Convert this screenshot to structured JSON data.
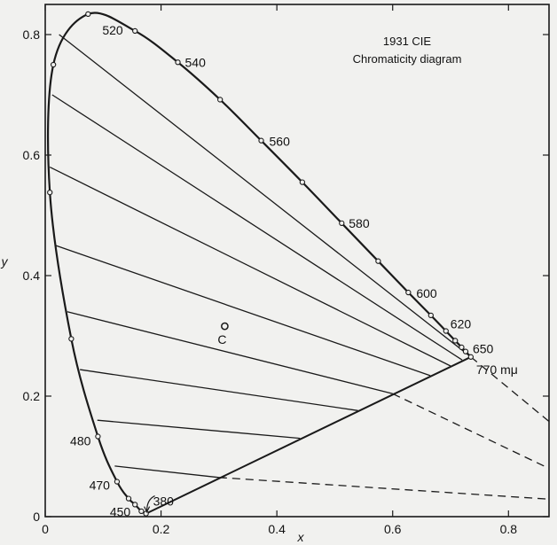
{
  "chart_data": {
    "type": "line",
    "title": "1931 CIE",
    "subtitle": "Chromaticity diagram",
    "xlabel": "x",
    "ylabel": "y",
    "xlim": [
      0,
      0.87
    ],
    "ylim": [
      0,
      0.85
    ],
    "x_ticks": [
      "0",
      "0.2",
      "0.4",
      "0.6",
      "0.8"
    ],
    "y_ticks": [
      "0",
      "0.2",
      "0.4",
      "0.6",
      "0.8"
    ],
    "spectrum_locus": [
      {
        "x": 0.174,
        "y": 0.005
      },
      {
        "x": 0.166,
        "y": 0.009
      },
      {
        "x": 0.155,
        "y": 0.02
      },
      {
        "x": 0.144,
        "y": 0.03
      },
      {
        "x": 0.124,
        "y": 0.058
      },
      {
        "x": 0.091,
        "y": 0.133
      },
      {
        "x": 0.045,
        "y": 0.295
      },
      {
        "x": 0.008,
        "y": 0.538
      },
      {
        "x": 0.014,
        "y": 0.75
      },
      {
        "x": 0.074,
        "y": 0.834
      },
      {
        "x": 0.155,
        "y": 0.806
      },
      {
        "x": 0.229,
        "y": 0.754
      },
      {
        "x": 0.302,
        "y": 0.692
      },
      {
        "x": 0.373,
        "y": 0.624
      },
      {
        "x": 0.444,
        "y": 0.555
      },
      {
        "x": 0.512,
        "y": 0.487
      },
      {
        "x": 0.575,
        "y": 0.424
      },
      {
        "x": 0.627,
        "y": 0.372
      },
      {
        "x": 0.666,
        "y": 0.334
      },
      {
        "x": 0.692,
        "y": 0.308
      },
      {
        "x": 0.708,
        "y": 0.292
      },
      {
        "x": 0.719,
        "y": 0.281
      },
      {
        "x": 0.726,
        "y": 0.274
      },
      {
        "x": 0.735,
        "y": 0.265
      }
    ],
    "wavelength_labels": [
      {
        "label": "380",
        "x": 0.174,
        "y": 0.005
      },
      {
        "label": "450",
        "x": 0.155,
        "y": 0.02
      },
      {
        "label": "470",
        "x": 0.124,
        "y": 0.058
      },
      {
        "label": "480",
        "x": 0.091,
        "y": 0.133
      },
      {
        "label": "520",
        "x": 0.074,
        "y": 0.834
      },
      {
        "label": "540",
        "x": 0.229,
        "y": 0.754
      },
      {
        "label": "560",
        "x": 0.373,
        "y": 0.624
      },
      {
        "label": "580",
        "x": 0.512,
        "y": 0.487
      },
      {
        "label": "600",
        "x": 0.627,
        "y": 0.372
      },
      {
        "label": "620",
        "x": 0.692,
        "y": 0.308
      },
      {
        "label": "650",
        "x": 0.726,
        "y": 0.274
      },
      {
        "label": "770 mμ",
        "x": 0.735,
        "y": 0.265
      }
    ],
    "purple_line": [
      {
        "x": 0.174,
        "y": 0.005
      },
      {
        "x": 0.735,
        "y": 0.265
      }
    ],
    "illuminant_c": {
      "label": "C",
      "x": 0.31,
      "y": 0.316
    },
    "constant_lines": [
      {
        "x1": 0.024,
        "y1": 0.8,
        "x2": 0.735,
        "y2": 0.265
      },
      {
        "x1": 0.012,
        "y1": 0.7,
        "x2": 0.72,
        "y2": 0.26
      },
      {
        "x1": 0.008,
        "y1": 0.58,
        "x2": 0.7,
        "y2": 0.25
      },
      {
        "x1": 0.018,
        "y1": 0.45,
        "x2": 0.665,
        "y2": 0.234
      },
      {
        "x1": 0.038,
        "y1": 0.34,
        "x2": 0.6,
        "y2": 0.204
      },
      {
        "x1": 0.06,
        "y1": 0.244,
        "x2": 0.54,
        "y2": 0.176
      },
      {
        "x1": 0.09,
        "y1": 0.16,
        "x2": 0.44,
        "y2": 0.13
      },
      {
        "x1": 0.12,
        "y1": 0.084,
        "x2": 0.3,
        "y2": 0.065
      }
    ],
    "dashed_extensions": [
      {
        "x1": 0.735,
        "y1": 0.265,
        "x2": 0.87,
        "y2": 0.158
      },
      {
        "x1": 0.6,
        "y1": 0.204,
        "x2": 0.87,
        "y2": 0.08
      },
      {
        "x1": 0.3,
        "y1": 0.065,
        "x2": 0.87,
        "y2": 0.029
      }
    ]
  }
}
